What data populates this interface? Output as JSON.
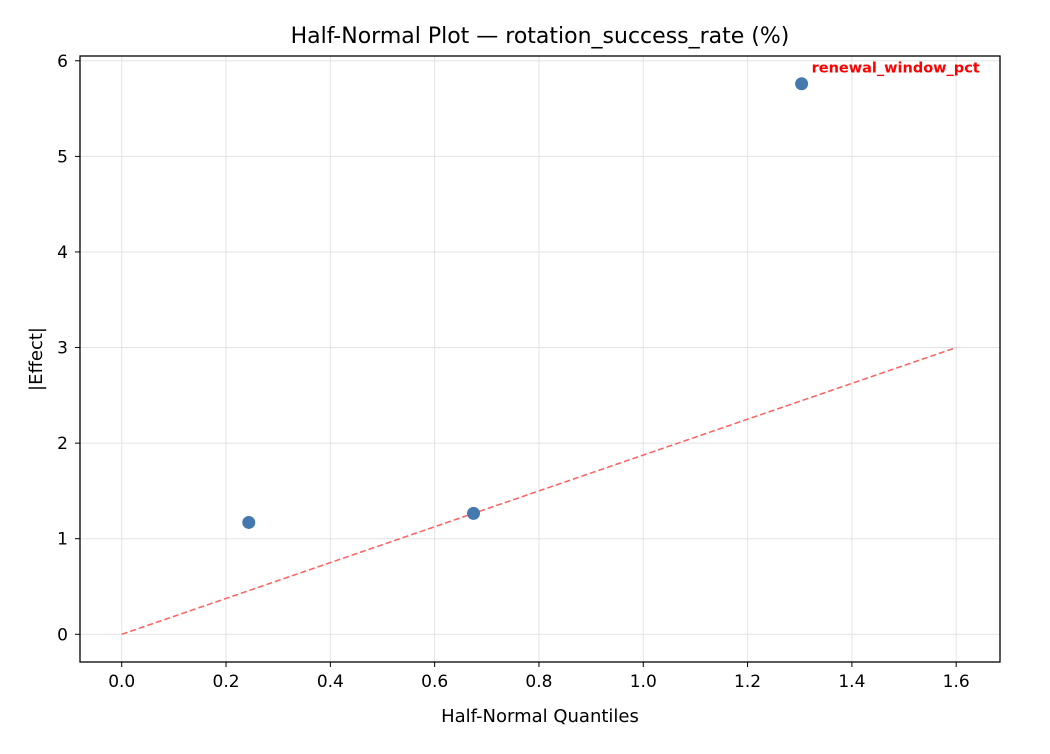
{
  "chart_data": {
    "type": "scatter",
    "title": "Half-Normal Plot — rotation_success_rate (%)",
    "xlabel": "Half-Normal Quantiles",
    "ylabel": "|Effect|",
    "xlim": [
      -0.08,
      1.684
    ],
    "ylim": [
      -0.29,
      6.05
    ],
    "xticks": [
      0.0,
      0.2,
      0.4,
      0.6,
      0.8,
      1.0,
      1.2,
      1.4,
      1.6
    ],
    "xtick_labels": [
      "0.0",
      "0.2",
      "0.4",
      "0.6",
      "0.8",
      "1.0",
      "1.2",
      "1.4",
      "1.6"
    ],
    "yticks": [
      0,
      1,
      2,
      3,
      4,
      5,
      6
    ],
    "ytick_labels": [
      "0",
      "1",
      "2",
      "3",
      "4",
      "5",
      "6"
    ],
    "grid": true,
    "points": [
      {
        "x": 0.2436,
        "y": 1.17,
        "label": ""
      },
      {
        "x": 0.6745,
        "y": 1.265,
        "label": ""
      },
      {
        "x": 1.3036,
        "y": 5.76,
        "label": "renewal_window_pct"
      }
    ],
    "reference_line": {
      "x": [
        0,
        1.6
      ],
      "y": [
        0,
        3.0
      ],
      "style": "dashed",
      "color": "#ff6060"
    },
    "point_color": "#4479b0",
    "annotation_color": "#ff0000"
  }
}
